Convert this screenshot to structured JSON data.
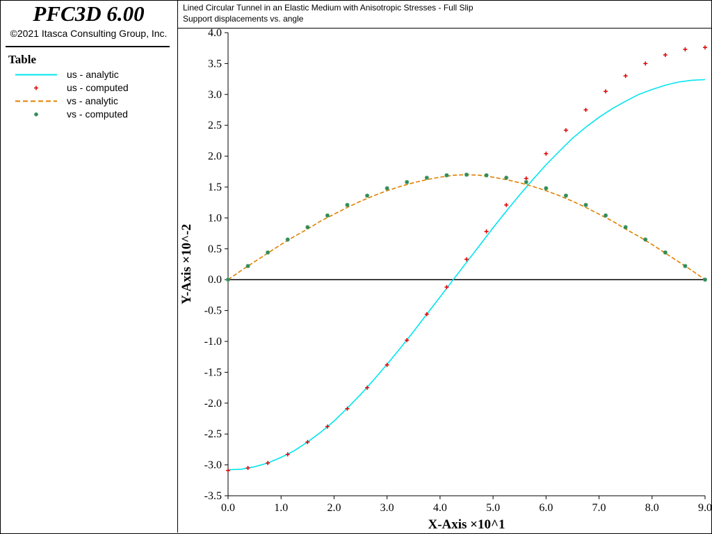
{
  "app": {
    "title": "PFC3D 6.00",
    "copyright": "©2021 Itasca Consulting Group, Inc."
  },
  "legend": {
    "heading": "Table",
    "items": [
      {
        "label": "us - analytic",
        "kind": "line",
        "color": "#00e5ee"
      },
      {
        "label": "us - computed",
        "kind": "marker-plus",
        "color": "#e00000"
      },
      {
        "label": "vs - analytic",
        "kind": "line-dashed",
        "color": "#e08000"
      },
      {
        "label": "vs - computed",
        "kind": "marker-star",
        "color": "#2e8b57"
      }
    ]
  },
  "plot": {
    "title_line1": "Lined Circular Tunnel in an Elastic Medium with Anisotropic Stresses - Full Slip",
    "title_line2": "Support displacements vs. angle"
  },
  "chart_data": {
    "type": "line",
    "xlabel": "X-Axis ×10^1",
    "ylabel": "Y-Axis ×10^-2",
    "xlim": [
      0,
      9
    ],
    "ylim": [
      -3.5,
      4
    ],
    "xticks": [
      "0.0",
      "1.0",
      "2.0",
      "3.0",
      "4.0",
      "5.0",
      "6.0",
      "7.0",
      "8.0",
      "9.0"
    ],
    "yticks": [
      "4.0",
      "3.5",
      "3.0",
      "2.5",
      "2.0",
      "1.5",
      "1.0",
      "0.5",
      "0.0",
      "-0.5",
      "-1.0",
      "-1.5",
      "-2.0",
      "-2.5",
      "-3.0",
      "-3.5"
    ],
    "zero_line": true,
    "grid": false,
    "series": [
      {
        "name": "us - analytic",
        "style": "solid-line",
        "color": "#00e5ee",
        "x": [
          0,
          0.25,
          0.5,
          0.75,
          1,
          1.25,
          1.5,
          1.75,
          2,
          2.25,
          2.5,
          2.75,
          3,
          3.25,
          3.5,
          3.75,
          4,
          4.25,
          4.5,
          4.75,
          5,
          5.25,
          5.5,
          5.75,
          6,
          6.25,
          6.5,
          6.75,
          7,
          7.25,
          7.5,
          7.75,
          8,
          8.25,
          8.5,
          8.75,
          9
        ],
        "y": [
          -3.08,
          -3.07,
          -3.03,
          -2.97,
          -2.88,
          -2.77,
          -2.63,
          -2.47,
          -2.29,
          -2.08,
          -1.86,
          -1.62,
          -1.37,
          -1.11,
          -0.84,
          -0.56,
          -0.28,
          0.0,
          0.28,
          0.56,
          0.84,
          1.11,
          1.37,
          1.62,
          1.86,
          2.08,
          2.29,
          2.47,
          2.63,
          2.77,
          2.89,
          3.0,
          3.08,
          3.15,
          3.2,
          3.23,
          3.24
        ]
      },
      {
        "name": "us - computed",
        "style": "plus-marker",
        "color": "#e00000",
        "x": [
          0,
          0.375,
          0.75,
          1.125,
          1.5,
          1.875,
          2.25,
          2.625,
          3,
          3.375,
          3.75,
          4.125,
          4.5,
          4.875,
          5.25,
          5.625,
          6,
          6.375,
          6.75,
          7.125,
          7.5,
          7.875,
          8.25,
          8.625,
          9
        ],
        "y": [
          -3.09,
          -3.05,
          -2.97,
          -2.83,
          -2.63,
          -2.38,
          -2.09,
          -1.75,
          -1.38,
          -0.98,
          -0.56,
          -0.12,
          0.33,
          0.78,
          1.21,
          1.64,
          2.04,
          2.42,
          2.75,
          3.05,
          3.3,
          3.5,
          3.64,
          3.73,
          3.76
        ]
      },
      {
        "name": "vs - analytic",
        "style": "dashed-line",
        "color": "#e08000",
        "x": [
          0,
          0.25,
          0.5,
          0.75,
          1,
          1.25,
          1.5,
          1.75,
          2,
          2.25,
          2.5,
          2.75,
          3,
          3.25,
          3.5,
          3.75,
          4,
          4.25,
          4.5,
          4.75,
          5,
          5.25,
          5.5,
          5.75,
          6,
          6.25,
          6.5,
          6.75,
          7,
          7.25,
          7.5,
          7.75,
          8,
          8.25,
          8.5,
          8.75,
          9
        ],
        "y": [
          0,
          0.15,
          0.29,
          0.43,
          0.57,
          0.7,
          0.82,
          0.95,
          1.06,
          1.17,
          1.27,
          1.36,
          1.44,
          1.51,
          1.57,
          1.62,
          1.66,
          1.69,
          1.7,
          1.69,
          1.66,
          1.62,
          1.57,
          1.51,
          1.44,
          1.36,
          1.27,
          1.17,
          1.06,
          0.95,
          0.82,
          0.7,
          0.57,
          0.43,
          0.29,
          0.15,
          0
        ]
      },
      {
        "name": "vs - computed",
        "style": "star-marker",
        "color": "#2e8b57",
        "x": [
          0,
          0.375,
          0.75,
          1.125,
          1.5,
          1.875,
          2.25,
          2.625,
          3,
          3.375,
          3.75,
          4.125,
          4.5,
          4.875,
          5.25,
          5.625,
          6,
          6.375,
          6.75,
          7.125,
          7.5,
          7.875,
          8.25,
          8.625,
          9
        ],
        "y": [
          0,
          0.22,
          0.44,
          0.65,
          0.85,
          1.04,
          1.21,
          1.36,
          1.48,
          1.58,
          1.65,
          1.69,
          1.7,
          1.69,
          1.65,
          1.58,
          1.48,
          1.36,
          1.21,
          1.04,
          0.85,
          0.65,
          0.44,
          0.22,
          0
        ]
      }
    ]
  }
}
